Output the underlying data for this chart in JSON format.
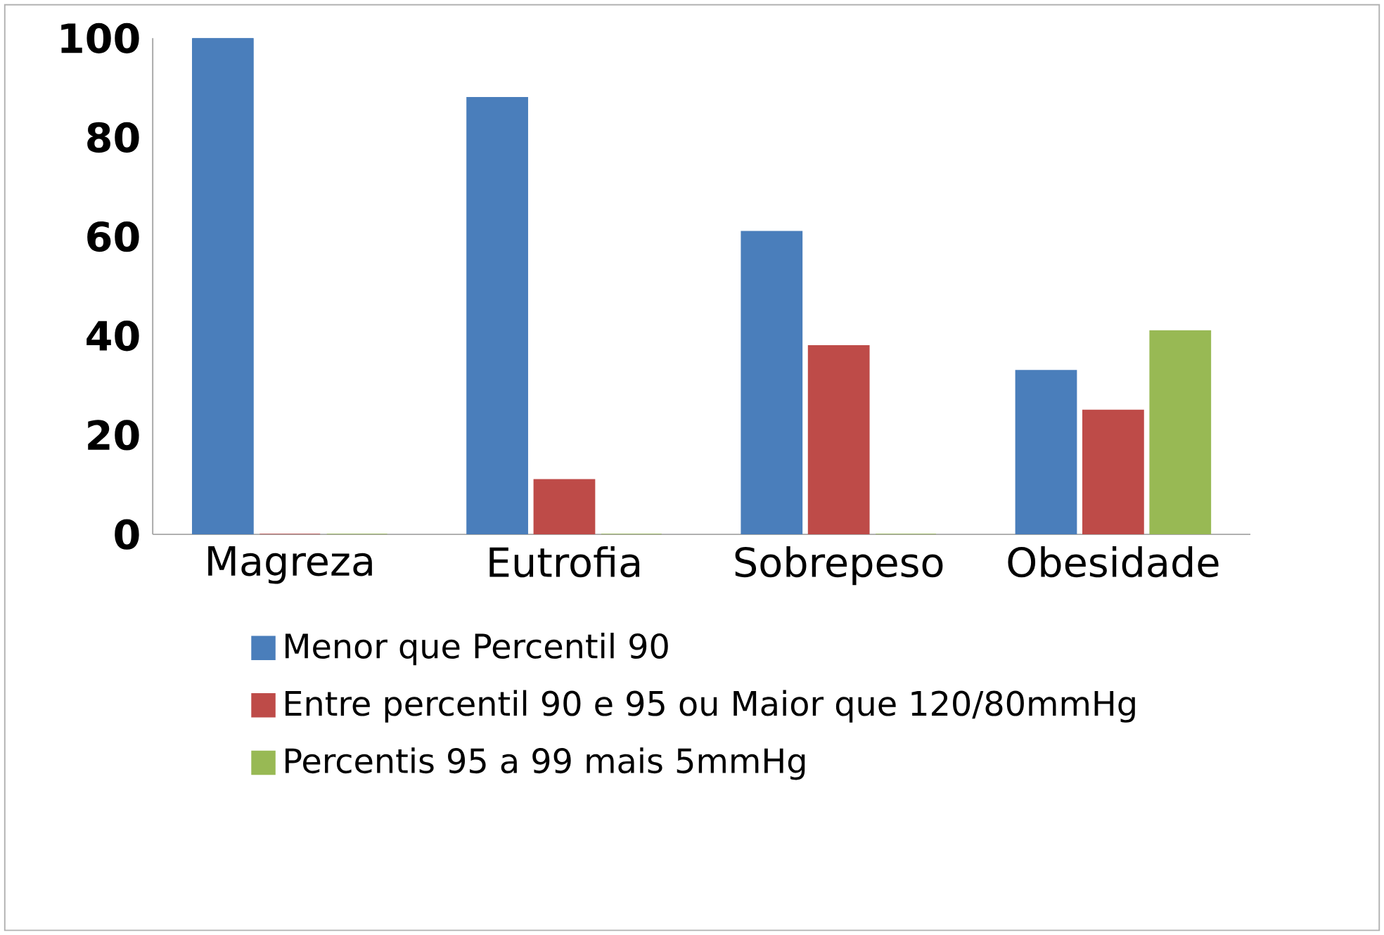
{
  "chart_data": {
    "type": "bar",
    "categories": [
      "Magreza",
      "Eutrofia",
      "Sobrepeso",
      "Obesidade"
    ],
    "series": [
      {
        "name": "Menor que Percentil 90",
        "color": "#4a7ebb",
        "values": [
          100,
          88,
          61,
          33
        ]
      },
      {
        "name": "Entre percentil 90 e 95 ou Maior que 120/80mmHg",
        "color": "#be4b48",
        "values": [
          0,
          11,
          38,
          25
        ]
      },
      {
        "name": "Percentis 95 a 99 mais 5mmHg",
        "color": "#98b954",
        "values": [
          0,
          0,
          0,
          41
        ]
      }
    ],
    "ylim": [
      0,
      100
    ],
    "yticks": [
      0,
      20,
      40,
      60,
      80,
      100
    ],
    "grid": false,
    "legend": "bottom"
  }
}
